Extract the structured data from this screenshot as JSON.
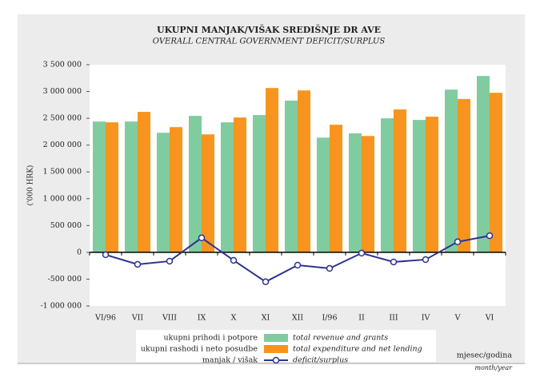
{
  "chart_data": {
    "type": "bar",
    "title": "UKUPNI MANJAK/VIŠAK SREDIŠNJE DR AVE",
    "subtitle": "OVERALL CENTRAL GOVERNMENT DEFICIT/SURPLUS",
    "y_label": "('000 HRK)",
    "x_label": "mjesec/godina",
    "x_label_en": "month/year",
    "categories": [
      "VI/96",
      "VII",
      "VIII",
      "IX",
      "X",
      "XI",
      "XII",
      "I/96",
      "II",
      "III",
      "IV",
      "V",
      "VI"
    ],
    "series": [
      {
        "name": "total revenue and grants",
        "label_hr": "ukupni prihodi i potpore",
        "type": "bar",
        "color": "#80cc9f",
        "values": [
          2440000,
          2440000,
          2230000,
          2545000,
          2425000,
          2560000,
          2830000,
          2140000,
          2220000,
          2500000,
          2470000,
          3035000,
          3290000
        ]
      },
      {
        "name": "total expenditure and net lending",
        "label_hr": "ukupni rashodi i neto posudbe",
        "type": "bar",
        "color": "#f7941d",
        "values": [
          2425000,
          2620000,
          2335000,
          2200000,
          2515000,
          3065000,
          3020000,
          2380000,
          2170000,
          2665000,
          2530000,
          2860000,
          2975000
        ]
      },
      {
        "name": "deficit/surplus",
        "label_hr": "manjak / višak",
        "type": "line",
        "color": "#2e3192",
        "values": [
          -45000,
          -225000,
          -165000,
          270000,
          -150000,
          -550000,
          -240000,
          -300000,
          -15000,
          -180000,
          -135000,
          195000,
          310000
        ]
      }
    ],
    "ylim": [
      -1000000,
      3500000
    ],
    "yticks": [
      {
        "value": -1000000,
        "label": "-1 000 000"
      },
      {
        "value": -500000,
        "label": "-500 000"
      },
      0,
      {
        "value": 500000,
        "label": "500 000"
      },
      {
        "value": 1000000,
        "label": "1 000 000"
      },
      {
        "value": 1500000,
        "label": "1 500 000"
      },
      {
        "value": 2000000,
        "label": "2 000 000"
      },
      {
        "value": 2500000,
        "label": "2 500 000"
      },
      {
        "value": 3000000,
        "label": "3 000 000"
      },
      {
        "value": 3500000,
        "label": "3 500 000"
      }
    ],
    "grid": false
  }
}
